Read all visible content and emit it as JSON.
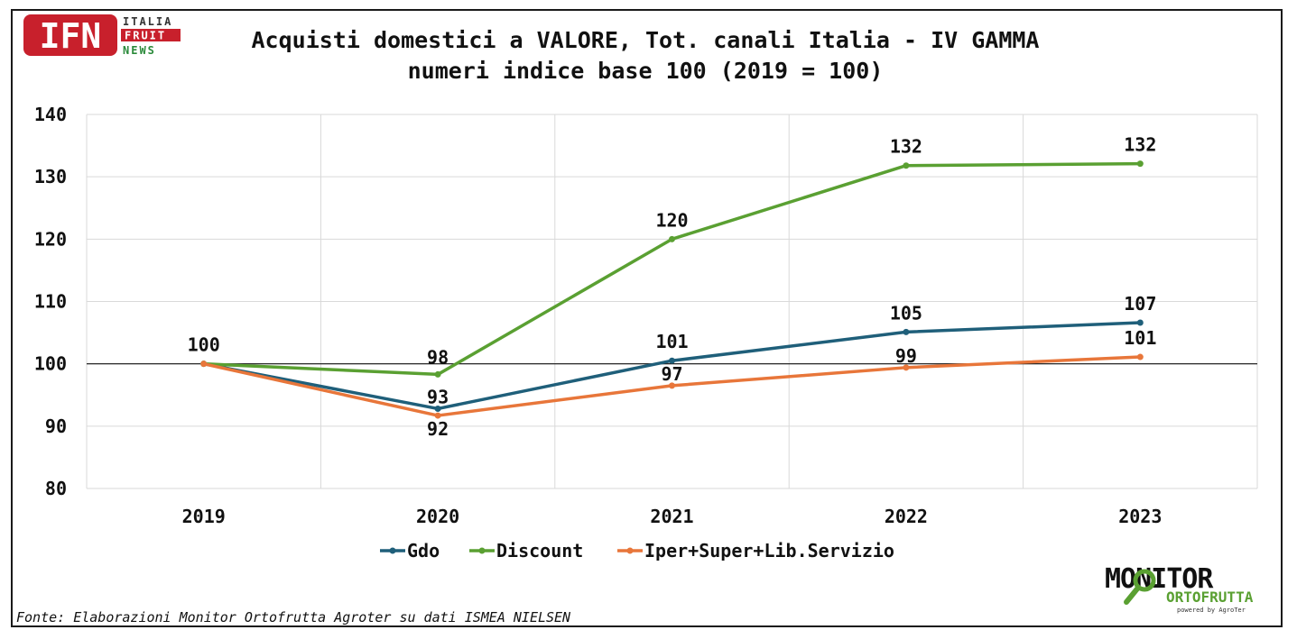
{
  "header": {
    "title_line1": "Acquisti domestici a VALORE, Tot. canali Italia - IV GAMMA",
    "title_line2": "numeri indice base 100 (2019 = 100)"
  },
  "logos": {
    "ifn": {
      "mark": "IFN",
      "line1": "ITALIA",
      "line2": "FRUIT",
      "line3": "NEWS"
    },
    "monitor": {
      "line1": "MONITOR",
      "line2": "ORTOFRUTTA",
      "line3": "powered by AgroTer"
    }
  },
  "source": "Fonte: Elaborazioni Monitor Ortofrutta Agroter su dati ISMEA NIELSEN",
  "colors": {
    "gdo": "#1f5f7a",
    "discount": "#5aa032",
    "iper": "#e8763a",
    "ifn_red": "#c8202c",
    "ifn_green": "#2a8a3a"
  },
  "chart_data": {
    "type": "line",
    "title": "Acquisti domestici a VALORE, Tot. canali Italia - IV GAMMA",
    "subtitle": "numeri indice base 100 (2019 = 100)",
    "categories": [
      "2019",
      "2020",
      "2021",
      "2022",
      "2023"
    ],
    "ylim": [
      80,
      140
    ],
    "yticks": [
      80,
      90,
      100,
      110,
      120,
      130,
      140
    ],
    "grid": true,
    "reference_line": 100,
    "legend_position": "bottom",
    "series": [
      {
        "name": "Gdo",
        "key": "gdo",
        "values": [
          100,
          92.8,
          100.5,
          105.1,
          106.6
        ],
        "labels": [
          "100",
          "93",
          "101",
          "105",
          "107"
        ]
      },
      {
        "name": "Discount",
        "key": "discount",
        "values": [
          100,
          98.3,
          120,
          131.8,
          132.1
        ],
        "labels": [
          "",
          "98",
          "120",
          "132",
          "132"
        ]
      },
      {
        "name": "Iper+Super+Lib.Servizio",
        "key": "iper",
        "values": [
          100,
          91.7,
          96.5,
          99.4,
          101.1
        ],
        "labels": [
          "",
          "92",
          "97",
          "99",
          "101"
        ]
      }
    ]
  }
}
